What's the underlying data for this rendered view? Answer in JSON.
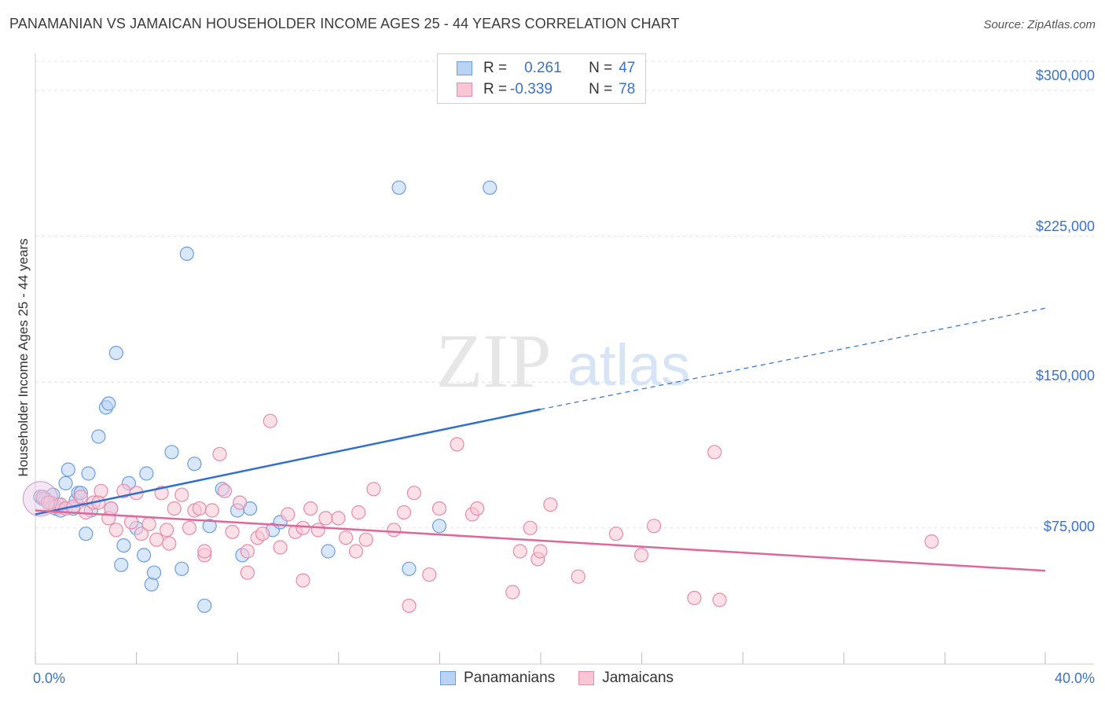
{
  "title": "PANAMANIAN VS JAMAICAN HOUSEHOLDER INCOME AGES 25 - 44 YEARS CORRELATION CHART",
  "source": "Source: ZipAtlas.com",
  "watermark": {
    "zip": "ZIP",
    "atlas": "atlas"
  },
  "legend": {
    "rows": [
      {
        "r_label": "R =",
        "r_value": "0.261",
        "n_label": "N =",
        "n_value": "47",
        "fill": "#b9d3f5",
        "stroke": "#6d9de0"
      },
      {
        "r_label": "R =",
        "r_value": "-0.339",
        "n_label": "N =",
        "n_value": "78",
        "fill": "#f9c6d6",
        "stroke": "#e98aa8"
      }
    ]
  },
  "bottom_legend": [
    {
      "label": "Panamanians",
      "fill": "#b9d3f5",
      "stroke": "#6d9de0"
    },
    {
      "label": "Jamaicans",
      "fill": "#f9c6d6",
      "stroke": "#e98aa8"
    }
  ],
  "chart_data": {
    "type": "scatter",
    "ylabel": "Householder Income Ages 25 - 44 years",
    "x_tick_labels": [
      "0.0%",
      "40.0%"
    ],
    "y_tick_labels": [
      "$75,000",
      "$150,000",
      "$225,000",
      "$300,000"
    ],
    "xlim": [
      0,
      40
    ],
    "ylim": [
      5000,
      315000
    ],
    "grid": true,
    "series": [
      {
        "name": "Panamanians",
        "color": "#6d9de0",
        "fill": "#b9d3f5",
        "points": [
          [
            0.2,
            91000
          ],
          [
            0.4,
            90000
          ],
          [
            0.5,
            88000
          ],
          [
            0.7,
            92000
          ],
          [
            0.8,
            85000
          ],
          [
            0.9,
            87000
          ],
          [
            1.0,
            84000
          ],
          [
            1.2,
            98000
          ],
          [
            1.3,
            105000
          ],
          [
            1.5,
            85000
          ],
          [
            1.6,
            89000
          ],
          [
            1.7,
            93000
          ],
          [
            1.8,
            93000
          ],
          [
            2.0,
            72000
          ],
          [
            2.1,
            103000
          ],
          [
            2.2,
            84000
          ],
          [
            2.5,
            122000
          ],
          [
            2.8,
            137000
          ],
          [
            2.9,
            139000
          ],
          [
            3.0,
            85000
          ],
          [
            3.2,
            165000
          ],
          [
            3.4,
            56000
          ],
          [
            3.5,
            66000
          ],
          [
            3.7,
            98000
          ],
          [
            4.0,
            75000
          ],
          [
            4.3,
            61000
          ],
          [
            4.4,
            103000
          ],
          [
            4.6,
            46000
          ],
          [
            4.7,
            52000
          ],
          [
            5.4,
            114000
          ],
          [
            5.8,
            54000
          ],
          [
            6.0,
            216000
          ],
          [
            6.3,
            108000
          ],
          [
            6.7,
            35000
          ],
          [
            6.9,
            76000
          ],
          [
            7.4,
            95000
          ],
          [
            8.0,
            84000
          ],
          [
            8.2,
            61000
          ],
          [
            8.5,
            85000
          ],
          [
            9.4,
            74000
          ],
          [
            9.7,
            78000
          ],
          [
            11.6,
            63000
          ],
          [
            14.4,
            250000
          ],
          [
            14.8,
            54000
          ],
          [
            16.0,
            76000
          ],
          [
            18.0,
            250000
          ],
          [
            0.3,
            90000
          ]
        ],
        "trend": {
          "x": [
            0,
            20
          ],
          "y": [
            82000,
            136000
          ],
          "dashed_to": {
            "x": 40,
            "y": 188000
          }
        }
      },
      {
        "name": "Jamaicans",
        "color": "#e98aa8",
        "fill": "#f9c6d6",
        "points": [
          [
            0.3,
            91000
          ],
          [
            0.6,
            88000
          ],
          [
            0.8,
            86000
          ],
          [
            1.0,
            87000
          ],
          [
            1.2,
            85000
          ],
          [
            1.5,
            86000
          ],
          [
            1.8,
            91000
          ],
          [
            2.0,
            83000
          ],
          [
            2.3,
            88000
          ],
          [
            2.6,
            94000
          ],
          [
            2.9,
            80000
          ],
          [
            3.2,
            74000
          ],
          [
            3.5,
            94000
          ],
          [
            3.8,
            78000
          ],
          [
            4.0,
            93000
          ],
          [
            4.2,
            72000
          ],
          [
            4.5,
            77000
          ],
          [
            4.8,
            69000
          ],
          [
            5.0,
            93000
          ],
          [
            5.2,
            74000
          ],
          [
            5.5,
            85000
          ],
          [
            5.8,
            92000
          ],
          [
            6.1,
            75000
          ],
          [
            6.3,
            84000
          ],
          [
            6.5,
            85000
          ],
          [
            6.7,
            61000
          ],
          [
            7.0,
            84000
          ],
          [
            7.3,
            113000
          ],
          [
            7.5,
            94000
          ],
          [
            7.8,
            73000
          ],
          [
            8.1,
            88000
          ],
          [
            8.4,
            63000
          ],
          [
            8.8,
            70000
          ],
          [
            9.0,
            72000
          ],
          [
            9.3,
            130000
          ],
          [
            9.7,
            65000
          ],
          [
            10.0,
            82000
          ],
          [
            10.3,
            73000
          ],
          [
            10.6,
            48000
          ],
          [
            10.9,
            85000
          ],
          [
            11.2,
            74000
          ],
          [
            11.5,
            80000
          ],
          [
            12.0,
            80000
          ],
          [
            12.3,
            70000
          ],
          [
            12.7,
            63000
          ],
          [
            13.1,
            69000
          ],
          [
            13.4,
            95000
          ],
          [
            14.2,
            74000
          ],
          [
            14.6,
            83000
          ],
          [
            14.8,
            35000
          ],
          [
            15.0,
            93000
          ],
          [
            15.6,
            51000
          ],
          [
            16.0,
            85000
          ],
          [
            16.7,
            118000
          ],
          [
            17.3,
            82000
          ],
          [
            17.5,
            85000
          ],
          [
            18.9,
            42000
          ],
          [
            19.2,
            63000
          ],
          [
            19.6,
            75000
          ],
          [
            19.9,
            59000
          ],
          [
            20.0,
            63000
          ],
          [
            20.4,
            87000
          ],
          [
            21.5,
            50000
          ],
          [
            23.0,
            72000
          ],
          [
            24.0,
            61000
          ],
          [
            24.5,
            76000
          ],
          [
            26.1,
            39000
          ],
          [
            26.9,
            114000
          ],
          [
            27.1,
            38000
          ],
          [
            35.5,
            68000
          ],
          [
            5.3,
            67000
          ],
          [
            6.7,
            63000
          ],
          [
            8.4,
            52000
          ],
          [
            10.6,
            75000
          ],
          [
            12.8,
            83000
          ],
          [
            2.5,
            88000
          ],
          [
            3.0,
            85000
          ],
          [
            0.5,
            88000
          ]
        ],
        "trend": {
          "x": [
            0,
            40
          ],
          "y": [
            84000,
            53000
          ]
        }
      }
    ]
  }
}
